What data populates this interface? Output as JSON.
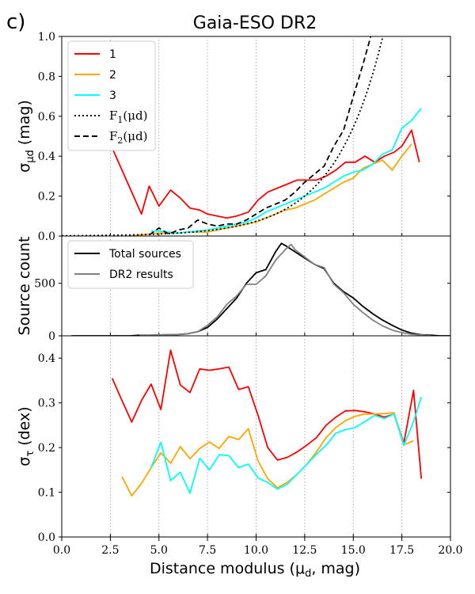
{
  "panel_label": "c)",
  "title": "Gaia-ESO DR2",
  "x_axis": {
    "label": "Distance modulus (μ",
    "label_sub": "d",
    "label_tail": ", mag)",
    "range": [
      0,
      20
    ],
    "ticks": [
      0,
      2.5,
      5,
      7.5,
      10,
      12.5,
      15,
      17.5,
      20
    ],
    "tick_labels": [
      "0.0",
      "2.5",
      "5.0",
      "7.5",
      "10.0",
      "12.5",
      "15.0",
      "17.5",
      "20.0"
    ],
    "vlines": [
      2.5,
      5,
      7.5,
      10,
      12.5,
      15,
      17.5
    ]
  },
  "colors": {
    "series1": "#ff0000",
    "series2": "#ffa500",
    "series3": "#00ffff",
    "black": "#000000",
    "gray": "#808080",
    "grid": "#999999"
  },
  "chart_data": [
    {
      "type": "line",
      "panel": "top",
      "ylabel": "σ",
      "ylabel_sub": "μd",
      "ylabel_tail": " (mag)",
      "ylim": [
        0,
        1.0
      ],
      "yticks": [
        0.0,
        0.2,
        0.4,
        0.6,
        0.8,
        1.0
      ],
      "ytick_labels": [
        "0.0",
        "0.2",
        "0.4",
        "0.6",
        "0.8",
        "1.0"
      ],
      "legend": {
        "placement": "top-left",
        "entries": [
          {
            "label": "1",
            "style": "solid",
            "color": "#ff0000"
          },
          {
            "label": "2",
            "style": "solid",
            "color": "#ffa500"
          },
          {
            "label": "3",
            "style": "solid",
            "color": "#00ffff"
          },
          {
            "label": "F",
            "label_sub": "1",
            "label_tail": "(μd)",
            "style": "dotted",
            "color": "#000000"
          },
          {
            "label": "F",
            "label_sub": "2",
            "label_tail": "(μd)",
            "style": "dashed",
            "color": "#000000"
          }
        ]
      },
      "series": [
        {
          "name": "1",
          "color": "#ff0000",
          "style": "solid",
          "x": [
            2.6,
            3.1,
            3.6,
            4.1,
            4.5,
            5.0,
            5.6,
            6.1,
            6.6,
            7.1,
            7.5,
            8.0,
            8.5,
            9.0,
            9.6,
            10.1,
            10.6,
            11.1,
            11.6,
            12.1,
            12.6,
            13.1,
            13.6,
            14.1,
            14.6,
            15.1,
            15.6,
            16.1,
            16.6,
            17.1,
            17.5,
            18.0,
            18.4
          ],
          "y": [
            0.44,
            0.33,
            0.22,
            0.11,
            0.25,
            0.15,
            0.23,
            0.19,
            0.14,
            0.13,
            0.11,
            0.1,
            0.09,
            0.1,
            0.12,
            0.18,
            0.22,
            0.24,
            0.26,
            0.28,
            0.28,
            0.28,
            0.3,
            0.33,
            0.37,
            0.37,
            0.4,
            0.37,
            0.4,
            0.42,
            0.45,
            0.53,
            0.37
          ]
        },
        {
          "name": "2",
          "color": "#ffa500",
          "style": "solid",
          "x": [
            3.5,
            4.0,
            4.5,
            5.0,
            5.5,
            6.0,
            6.5,
            7.0,
            7.5,
            8.0,
            8.5,
            9.0,
            9.5,
            10.0,
            10.5,
            11.0,
            11.5,
            12.0,
            12.5,
            13.0,
            13.5,
            14.0,
            14.5,
            15.0,
            15.5,
            16.0,
            16.5,
            17.0,
            17.5,
            18.0
          ],
          "y": [
            0.0,
            0.005,
            0.01,
            0.015,
            0.015,
            0.015,
            0.02,
            0.02,
            0.02,
            0.03,
            0.04,
            0.05,
            0.06,
            0.07,
            0.09,
            0.11,
            0.13,
            0.14,
            0.16,
            0.18,
            0.21,
            0.24,
            0.27,
            0.29,
            0.34,
            0.36,
            0.38,
            0.33,
            0.4,
            0.46
          ]
        },
        {
          "name": "3",
          "color": "#00ffff",
          "style": "solid",
          "x": [
            4.6,
            5.0,
            5.5,
            6.0,
            6.5,
            7.0,
            7.5,
            8.0,
            8.5,
            9.0,
            9.5,
            10.0,
            10.5,
            11.0,
            11.5,
            12.0,
            12.5,
            13.0,
            13.5,
            14.0,
            14.5,
            15.0,
            15.5,
            16.0,
            16.5,
            17.0,
            17.5,
            18.0,
            18.5
          ],
          "y": [
            0.025,
            0.025,
            0.02,
            0.015,
            0.02,
            0.025,
            0.03,
            0.04,
            0.05,
            0.06,
            0.07,
            0.09,
            0.12,
            0.14,
            0.16,
            0.18,
            0.2,
            0.22,
            0.24,
            0.27,
            0.3,
            0.32,
            0.33,
            0.36,
            0.41,
            0.43,
            0.54,
            0.58,
            0.64
          ]
        },
        {
          "name": "F2(μd)",
          "color": "#000000",
          "style": "dashed",
          "x": [
            4.5,
            5.0,
            5.5,
            6.0,
            6.5,
            7.0,
            7.5,
            8.0,
            8.5,
            9.0,
            9.5,
            10.0,
            10.5,
            11.0,
            11.5,
            12.0,
            12.5,
            13.0,
            13.5,
            14.0,
            14.5,
            15.0,
            15.5,
            15.9
          ],
          "y": [
            0.005,
            0.04,
            0.01,
            0.03,
            0.04,
            0.08,
            0.06,
            0.05,
            0.06,
            0.06,
            0.08,
            0.11,
            0.14,
            0.16,
            0.18,
            0.22,
            0.27,
            0.31,
            0.35,
            0.45,
            0.53,
            0.7,
            0.86,
            1.0
          ]
        },
        {
          "name": "F1(μd)",
          "color": "#000000",
          "style": "dotted",
          "function": "0.00135*exp(0.4*x)",
          "xrange": [
            0,
            18.6
          ]
        }
      ]
    },
    {
      "type": "line",
      "panel": "middle",
      "ylabel": "Source count",
      "ylim": [
        0,
        950
      ],
      "yticks": [
        0,
        500
      ],
      "ytick_labels": [
        "0",
        "500"
      ],
      "legend": {
        "placement": "top-left",
        "entries": [
          {
            "label": "Total sources",
            "style": "solid",
            "color": "#000000"
          },
          {
            "label": "DR2 results",
            "style": "solid",
            "color": "#808080"
          }
        ]
      },
      "series": [
        {
          "name": "Total sources",
          "color": "#000000",
          "x": [
            0.5,
            1.0,
            1.5,
            2.0,
            2.5,
            3.0,
            3.5,
            4.0,
            4.5,
            5.0,
            5.5,
            6.0,
            6.5,
            7.0,
            7.5,
            8.0,
            8.5,
            9.0,
            9.5,
            10.0,
            10.5,
            11.0,
            11.3,
            11.5,
            12.0,
            12.5,
            13.0,
            13.5,
            14.0,
            14.5,
            15.0,
            15.5,
            16.0,
            16.5,
            17.0,
            17.5,
            18.0,
            18.5,
            19.0,
            19.5,
            20.0
          ],
          "y": [
            0,
            0,
            0,
            0,
            0,
            0,
            0,
            5,
            5,
            8,
            10,
            12,
            20,
            40,
            80,
            160,
            260,
            360,
            500,
            600,
            630,
            800,
            880,
            860,
            800,
            740,
            680,
            640,
            500,
            420,
            360,
            280,
            210,
            150,
            100,
            55,
            25,
            10,
            5,
            0,
            0
          ]
        },
        {
          "name": "DR2 results",
          "color": "#808080",
          "x": [
            4.0,
            4.5,
            5.0,
            5.5,
            6.0,
            6.5,
            7.0,
            7.5,
            8.0,
            8.5,
            9.0,
            9.5,
            10.0,
            10.5,
            11.0,
            11.5,
            11.8,
            12.0,
            12.5,
            13.0,
            13.5,
            14.0,
            14.5,
            15.0,
            15.5,
            16.0,
            16.5,
            17.0,
            17.5,
            18.0,
            18.5,
            19.0
          ],
          "y": [
            5,
            5,
            8,
            10,
            12,
            20,
            40,
            100,
            180,
            300,
            380,
            490,
            490,
            570,
            720,
            820,
            870,
            820,
            750,
            680,
            650,
            490,
            410,
            300,
            220,
            150,
            95,
            55,
            30,
            15,
            8,
            0
          ]
        }
      ]
    },
    {
      "type": "line",
      "panel": "bottom",
      "ylabel": "σ",
      "ylabel_sub": "τ",
      "ylabel_tail": " (dex)",
      "ylim": [
        0,
        0.45
      ],
      "yticks": [
        0.0,
        0.1,
        0.2,
        0.3,
        0.4
      ],
      "ytick_labels": [
        "0.0",
        "0.1",
        "0.2",
        "0.3",
        "0.4"
      ],
      "series": [
        {
          "name": "1",
          "color": "#ff0000",
          "x": [
            2.6,
            3.1,
            3.6,
            4.1,
            4.6,
            5.1,
            5.6,
            6.1,
            6.6,
            7.1,
            7.6,
            8.1,
            8.6,
            9.1,
            9.6,
            10.1,
            10.6,
            11.1,
            11.6,
            12.1,
            12.6,
            13.1,
            13.6,
            14.1,
            14.6,
            15.1,
            15.6,
            16.1,
            16.6,
            17.1,
            17.6,
            18.1,
            18.5
          ],
          "y": [
            0.355,
            0.305,
            0.257,
            0.305,
            0.342,
            0.285,
            0.418,
            0.34,
            0.323,
            0.376,
            0.373,
            0.376,
            0.38,
            0.33,
            0.336,
            0.272,
            0.2,
            0.172,
            0.178,
            0.19,
            0.205,
            0.222,
            0.25,
            0.268,
            0.282,
            0.283,
            0.28,
            0.275,
            0.268,
            0.275,
            0.21,
            0.328,
            0.13
          ]
        },
        {
          "name": "2",
          "color": "#ffa500",
          "x": [
            3.1,
            3.6,
            4.1,
            4.6,
            5.1,
            5.6,
            6.1,
            6.6,
            7.1,
            7.6,
            8.1,
            8.6,
            9.1,
            9.6,
            10.1,
            10.6,
            11.1,
            11.6,
            12.1,
            12.6,
            13.1,
            13.6,
            14.1,
            14.6,
            15.1,
            15.6,
            16.1,
            16.6,
            17.1,
            17.6,
            18.1
          ],
          "y": [
            0.135,
            0.092,
            0.12,
            0.155,
            0.188,
            0.165,
            0.202,
            0.175,
            0.198,
            0.212,
            0.198,
            0.225,
            0.218,
            0.242,
            0.17,
            0.13,
            0.11,
            0.122,
            0.14,
            0.162,
            0.19,
            0.222,
            0.245,
            0.26,
            0.27,
            0.275,
            0.275,
            0.276,
            0.278,
            0.206,
            0.215
          ]
        },
        {
          "name": "3",
          "color": "#00ffff",
          "x": [
            4.6,
            5.1,
            5.6,
            6.1,
            6.6,
            7.1,
            7.6,
            8.1,
            8.6,
            9.1,
            9.6,
            10.1,
            10.6,
            11.1,
            11.6,
            12.1,
            12.6,
            13.1,
            13.6,
            14.1,
            14.6,
            15.1,
            15.6,
            16.1,
            16.6,
            17.1,
            17.6,
            18.1,
            18.5
          ],
          "y": [
            0.155,
            0.212,
            0.126,
            0.145,
            0.098,
            0.176,
            0.15,
            0.184,
            0.182,
            0.155,
            0.163,
            0.132,
            0.122,
            0.107,
            0.118,
            0.14,
            0.162,
            0.185,
            0.205,
            0.232,
            0.24,
            0.245,
            0.258,
            0.272,
            0.265,
            0.275,
            0.205,
            0.258,
            0.313
          ]
        }
      ]
    }
  ]
}
